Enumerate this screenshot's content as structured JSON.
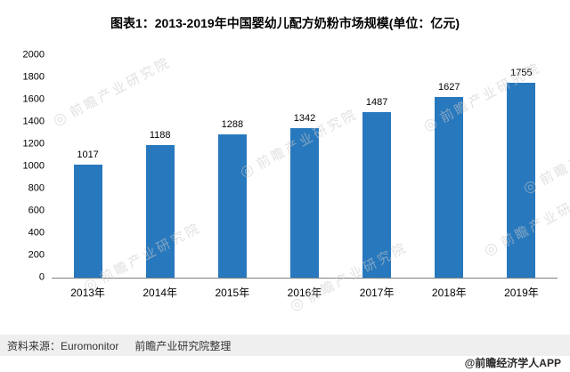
{
  "title": "图表1：2013-2019年中国婴幼儿配方奶粉市场规模(单位：亿元)",
  "chart_data": {
    "type": "bar",
    "title": "图表1：2013-2019年中国婴幼儿配方奶粉市场规模(单位：亿元)",
    "categories": [
      "2013年",
      "2014年",
      "2015年",
      "2016年",
      "2017年",
      "2018年",
      "2019年"
    ],
    "values": [
      1017,
      1188,
      1288,
      1342,
      1487,
      1627,
      1755
    ],
    "xlabel": "",
    "ylabel": "",
    "ylim": [
      0,
      2000
    ],
    "ytick_step": 200,
    "grid": false,
    "legend": false,
    "bar_color": "#2878BD",
    "value_labels": true
  },
  "footer": {
    "source": "资料来源：Euromonitor",
    "compiled_by": "前瞻产业研究院整理",
    "credit": "@前瞻经济学人APP"
  },
  "watermark": {
    "text": "前瞻产业研究院",
    "logo_glyph": "◎"
  }
}
